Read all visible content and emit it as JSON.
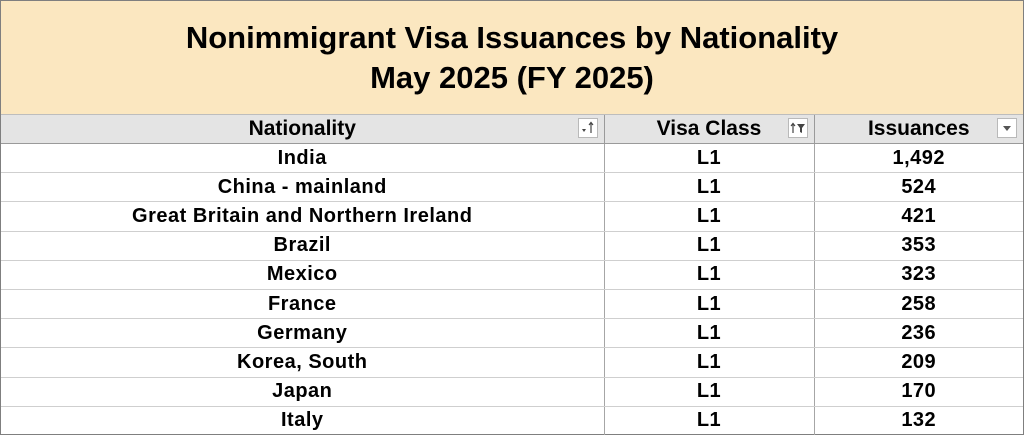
{
  "title": {
    "line1": "Nonimmigrant Visa Issuances by Nationality",
    "line2": "May 2025 (FY 2025)"
  },
  "headers": {
    "nationality": "Nationality",
    "visa_class": "Visa Class",
    "issuances": "Issuances"
  },
  "icons": {
    "nationality_filter": "sort-descending-icon",
    "visa_class_filter": "filter-active-icon",
    "issuances_filter": "dropdown-arrow-icon"
  },
  "rows": [
    {
      "nationality": "India",
      "visa_class": "L1",
      "issuances": "1,492"
    },
    {
      "nationality": "China - mainland",
      "visa_class": "L1",
      "issuances": "524"
    },
    {
      "nationality": "Great Britain and Northern Ireland",
      "visa_class": "L1",
      "issuances": "421"
    },
    {
      "nationality": "Brazil",
      "visa_class": "L1",
      "issuances": "353"
    },
    {
      "nationality": "Mexico",
      "visa_class": "L1",
      "issuances": "323"
    },
    {
      "nationality": "France",
      "visa_class": "L1",
      "issuances": "258"
    },
    {
      "nationality": "Germany",
      "visa_class": "L1",
      "issuances": "236"
    },
    {
      "nationality": "Korea, South",
      "visa_class": "L1",
      "issuances": "209"
    },
    {
      "nationality": "Japan",
      "visa_class": "L1",
      "issuances": "170"
    },
    {
      "nationality": "Italy",
      "visa_class": "L1",
      "issuances": "132"
    }
  ],
  "colors": {
    "title_background": "#fbe7c0",
    "header_background": "#e4e4e4"
  }
}
